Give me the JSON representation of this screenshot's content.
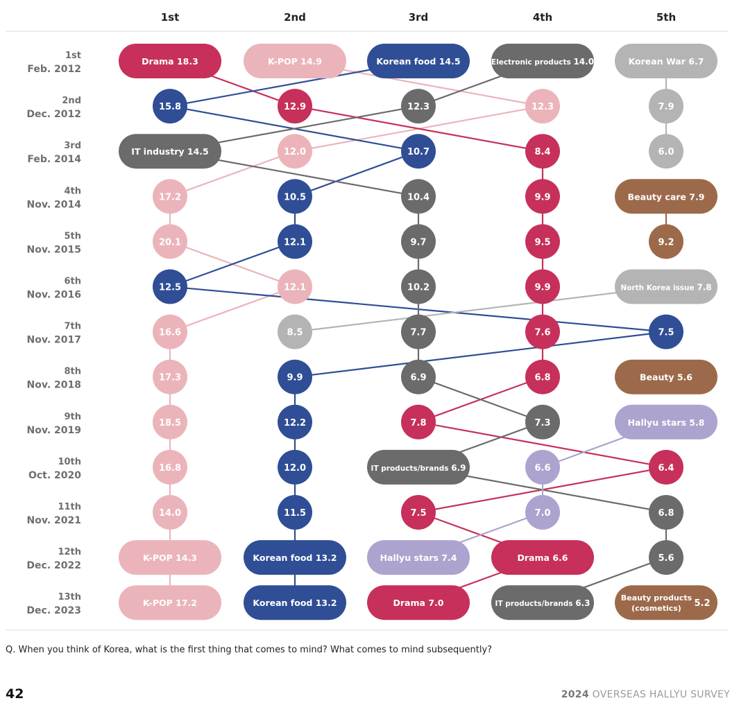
{
  "chart_data": {
    "type": "table",
    "columns": [
      "1st",
      "2nd",
      "3rd",
      "4th",
      "5th"
    ],
    "rows": [
      {
        "round": "1st",
        "date": "Feb. 2012"
      },
      {
        "round": "2nd",
        "date": "Dec. 2012"
      },
      {
        "round": "3rd",
        "date": "Feb. 2014"
      },
      {
        "round": "4th",
        "date": "Nov. 2014"
      },
      {
        "round": "5th",
        "date": "Nov. 2015"
      },
      {
        "round": "6th",
        "date": "Nov. 2016"
      },
      {
        "round": "7th",
        "date": "Nov. 2017"
      },
      {
        "round": "8th",
        "date": "Nov. 2018"
      },
      {
        "round": "9th",
        "date": "Nov. 2019"
      },
      {
        "round": "10th",
        "date": "Oct. 2020"
      },
      {
        "round": "11th",
        "date": "Nov. 2021"
      },
      {
        "round": "12th",
        "date": "Dec. 2022"
      },
      {
        "round": "13th",
        "date": "Dec. 2023"
      }
    ],
    "series": [
      {
        "category": "K-POP",
        "color": "#ebb4bb",
        "points": [
          {
            "row": 0,
            "rank": 2,
            "label": "K-POP",
            "value": "14.9"
          },
          {
            "row": 1,
            "rank": 4,
            "value": "12.3"
          },
          {
            "row": 2,
            "rank": 2,
            "value": "12.0"
          },
          {
            "row": 3,
            "rank": 1,
            "value": "17.2"
          },
          {
            "row": 4,
            "rank": 1,
            "value": "20.1"
          },
          {
            "row": 5,
            "rank": 2,
            "value": "12.1"
          },
          {
            "row": 6,
            "rank": 1,
            "value": "16.6"
          },
          {
            "row": 7,
            "rank": 1,
            "value": "17.3"
          },
          {
            "row": 8,
            "rank": 1,
            "value": "18.5"
          },
          {
            "row": 9,
            "rank": 1,
            "value": "16.8"
          },
          {
            "row": 10,
            "rank": 1,
            "value": "14.0"
          },
          {
            "row": 11,
            "rank": 1,
            "label": "K-POP",
            "value": "14.3"
          },
          {
            "row": 12,
            "rank": 1,
            "label": "K-POP",
            "value": "17.2"
          }
        ]
      },
      {
        "category": "Drama",
        "color": "#c6305a",
        "points": [
          {
            "row": 0,
            "rank": 1,
            "label": "Drama",
            "value": "18.3"
          },
          {
            "row": 1,
            "rank": 2,
            "value": "12.9"
          },
          {
            "row": 2,
            "rank": 4,
            "value": "8.4"
          },
          {
            "row": 3,
            "rank": 4,
            "value": "9.9"
          },
          {
            "row": 4,
            "rank": 4,
            "value": "9.5"
          },
          {
            "row": 5,
            "rank": 4,
            "value": "9.9"
          },
          {
            "row": 6,
            "rank": 4,
            "value": "7.6"
          },
          {
            "row": 7,
            "rank": 4,
            "value": "6.8"
          },
          {
            "row": 8,
            "rank": 3,
            "value": "7.8"
          },
          {
            "row": 9,
            "rank": 5,
            "value": "6.4"
          },
          {
            "row": 10,
            "rank": 3,
            "value": "7.5"
          },
          {
            "row": 11,
            "rank": 4,
            "label": "Drama",
            "value": "6.6"
          },
          {
            "row": 12,
            "rank": 3,
            "label": "Drama",
            "value": "7.0"
          }
        ]
      },
      {
        "category": "Korean food",
        "color": "#2f4e95",
        "points": [
          {
            "row": 0,
            "rank": 3,
            "label": "Korean food",
            "value": "14.5"
          },
          {
            "row": 1,
            "rank": 1,
            "value": "15.8"
          },
          {
            "row": 2,
            "rank": 3,
            "value": "10.7"
          },
          {
            "row": 3,
            "rank": 2,
            "value": "10.5"
          },
          {
            "row": 4,
            "rank": 2,
            "value": "12.1"
          },
          {
            "row": 5,
            "rank": 1,
            "value": "12.5"
          },
          {
            "row": 6,
            "rank": 5,
            "value": "7.5"
          },
          {
            "row": 7,
            "rank": 2,
            "value": "9.9"
          },
          {
            "row": 8,
            "rank": 2,
            "value": "12.2"
          },
          {
            "row": 9,
            "rank": 2,
            "value": "12.0"
          },
          {
            "row": 10,
            "rank": 2,
            "value": "11.5"
          },
          {
            "row": 11,
            "rank": 2,
            "label": "Korean food",
            "value": "13.2"
          },
          {
            "row": 12,
            "rank": 2,
            "label": "Korean food",
            "value": "13.2"
          }
        ]
      },
      {
        "category": "Electronic products / IT",
        "color": "#6b6b6b",
        "points": [
          {
            "row": 0,
            "rank": 4,
            "label": "Electronic products",
            "value": "14.0"
          },
          {
            "row": 1,
            "rank": 3,
            "value": "12.3"
          },
          {
            "row": 2,
            "rank": 1,
            "label": "IT industry",
            "value": "14.5"
          },
          {
            "row": 3,
            "rank": 3,
            "value": "10.4"
          },
          {
            "row": 4,
            "rank": 3,
            "value": "9.7"
          },
          {
            "row": 5,
            "rank": 3,
            "value": "10.2"
          },
          {
            "row": 6,
            "rank": 3,
            "value": "7.7"
          },
          {
            "row": 7,
            "rank": 3,
            "value": "6.9"
          },
          {
            "row": 8,
            "rank": 4,
            "value": "7.3"
          },
          {
            "row": 9,
            "rank": 3,
            "label": "IT products/brands",
            "value": "6.9"
          },
          {
            "row": 10,
            "rank": 5,
            "value": "6.8"
          },
          {
            "row": 11,
            "rank": 5,
            "value": "5.6"
          },
          {
            "row": 12,
            "rank": 4,
            "label": "IT products/brands",
            "value": "6.3"
          }
        ]
      },
      {
        "category": "Korean War / North Korea issue",
        "color": "#b4b4b4",
        "points": [
          {
            "row": 0,
            "rank": 5,
            "label": "Korean War",
            "value": "6.7"
          },
          {
            "row": 1,
            "rank": 5,
            "value": "7.9"
          },
          {
            "row": 2,
            "rank": 5,
            "value": "6.0"
          },
          {
            "row": 5,
            "rank": 5,
            "label": "North Korea issue",
            "value": "7.8"
          },
          {
            "row": 6,
            "rank": 2,
            "value": "8.5"
          }
        ]
      },
      {
        "category": "Beauty",
        "color": "#9c6a4a",
        "points": [
          {
            "row": 3,
            "rank": 5,
            "label": "Beauty care",
            "value": "7.9"
          },
          {
            "row": 4,
            "rank": 5,
            "value": "9.2"
          },
          {
            "row": 7,
            "rank": 5,
            "label": "Beauty",
            "value": "5.6"
          },
          {
            "row": 12,
            "rank": 5,
            "label": "Beauty products (cosmetics)",
            "value": "5.2"
          }
        ]
      },
      {
        "category": "Hallyu stars",
        "color": "#ada3cf",
        "points": [
          {
            "row": 8,
            "rank": 5,
            "label": "Hallyu stars",
            "value": "5.8"
          },
          {
            "row": 9,
            "rank": 4,
            "value": "6.6"
          },
          {
            "row": 10,
            "rank": 4,
            "value": "7.0"
          },
          {
            "row": 11,
            "rank": 3,
            "label": "Hallyu stars",
            "value": "7.4"
          }
        ]
      }
    ],
    "connections": [
      {
        "series": 0,
        "path": [
          0,
          1,
          2,
          3,
          4,
          5,
          6,
          7,
          8,
          9,
          10,
          11,
          12
        ]
      },
      {
        "series": 1,
        "path": [
          0,
          1,
          2,
          3,
          4,
          5,
          6,
          7,
          8,
          9,
          10,
          11,
          12
        ]
      },
      {
        "series": 2,
        "path": [
          0,
          1,
          2,
          3,
          4,
          5,
          6,
          7,
          8,
          9,
          10,
          11,
          12
        ]
      },
      {
        "series": 3,
        "path": [
          0,
          1,
          2,
          3,
          4,
          5,
          6,
          7,
          8,
          9,
          10,
          11,
          12
        ]
      },
      {
        "series": 4,
        "path": [
          0,
          1,
          2
        ]
      },
      {
        "series": 4,
        "path": [
          3,
          4
        ]
      },
      {
        "series": 5,
        "path": [
          0,
          1
        ]
      },
      {
        "series": 6,
        "path": [
          0,
          1,
          2,
          3
        ]
      }
    ]
  },
  "question": "Q. When you think of Korea, what is the first thing that comes to mind? What comes to mind subsequently?",
  "page_number": "42",
  "footer": {
    "year": "2024",
    "title": "OVERSEAS HALLYU SURVEY"
  }
}
